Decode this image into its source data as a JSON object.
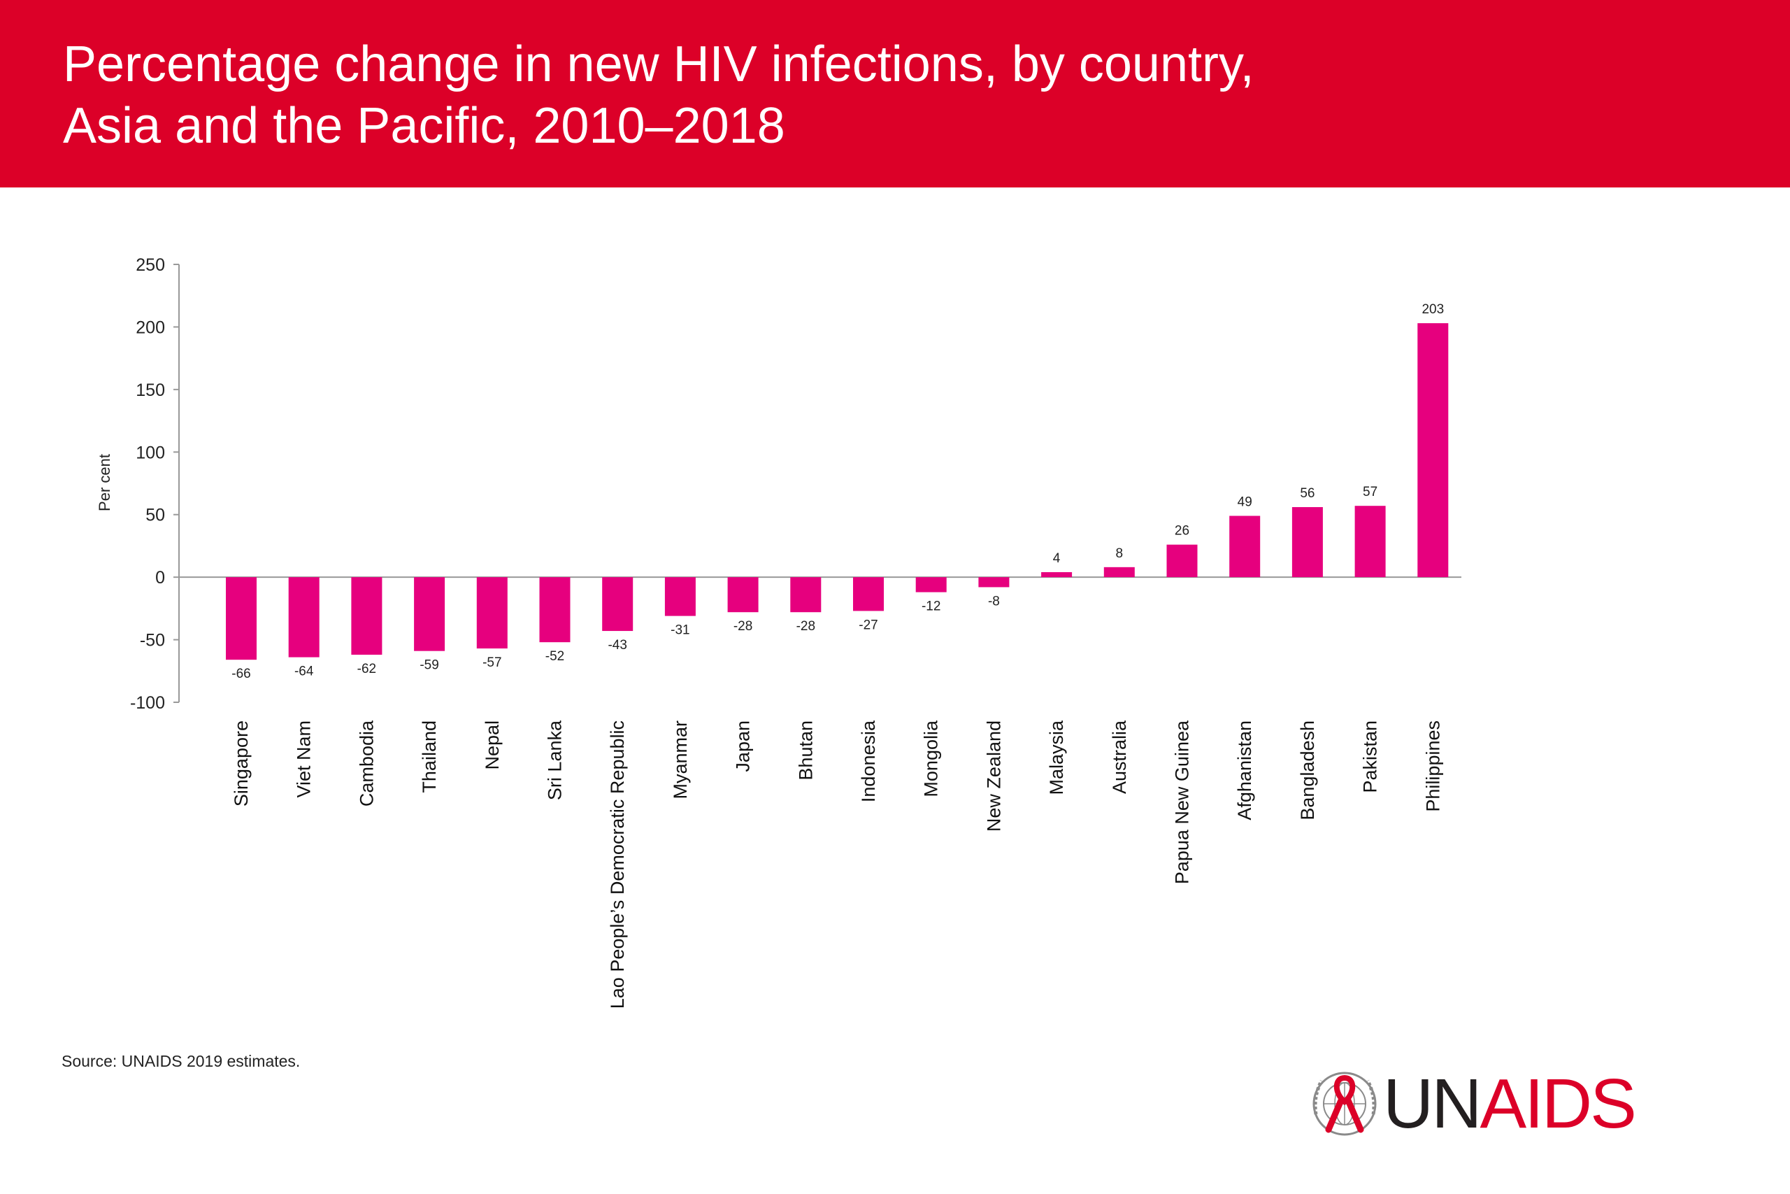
{
  "header": {
    "title_line1": "Percentage change in new HIV infections, by country,",
    "title_line2": "Asia and the Pacific, 2010–2018"
  },
  "footer": {
    "source": "Source: UNAIDS 2019 estimates."
  },
  "logo": {
    "text_left": "UN",
    "text_accent": "AIDS",
    "icon": "un-emblem-with-red-ribbon-icon"
  },
  "colors": {
    "banner": "#dc0028",
    "bar": "#e6007e",
    "axis": "#999999"
  },
  "chart_data": {
    "type": "bar",
    "title": "",
    "ylabel": "Per cent",
    "xlabel": "",
    "ylim": [
      -100,
      250
    ],
    "yticks": [
      -100,
      -50,
      0,
      50,
      100,
      150,
      200,
      250
    ],
    "categories": [
      "Singapore",
      "Viet Nam",
      "Cambodia",
      "Thailand",
      "Nepal",
      "Sri Lanka",
      "Lao People’s Democratic Republic",
      "Myanmar",
      "Japan",
      "Bhutan",
      "Indonesia",
      "Mongolia",
      "New Zealand",
      "Malaysia",
      "Australia",
      "Papua New Guinea",
      "Afghanistan",
      "Bangladesh",
      "Pakistan",
      "Philippines"
    ],
    "values": [
      -66,
      -64,
      -62,
      -59,
      -57,
      -52,
      -43,
      -31,
      -28,
      -28,
      -27,
      -12,
      -8,
      4,
      8,
      26,
      49,
      56,
      57,
      203
    ],
    "grid": false,
    "legend": "none"
  }
}
